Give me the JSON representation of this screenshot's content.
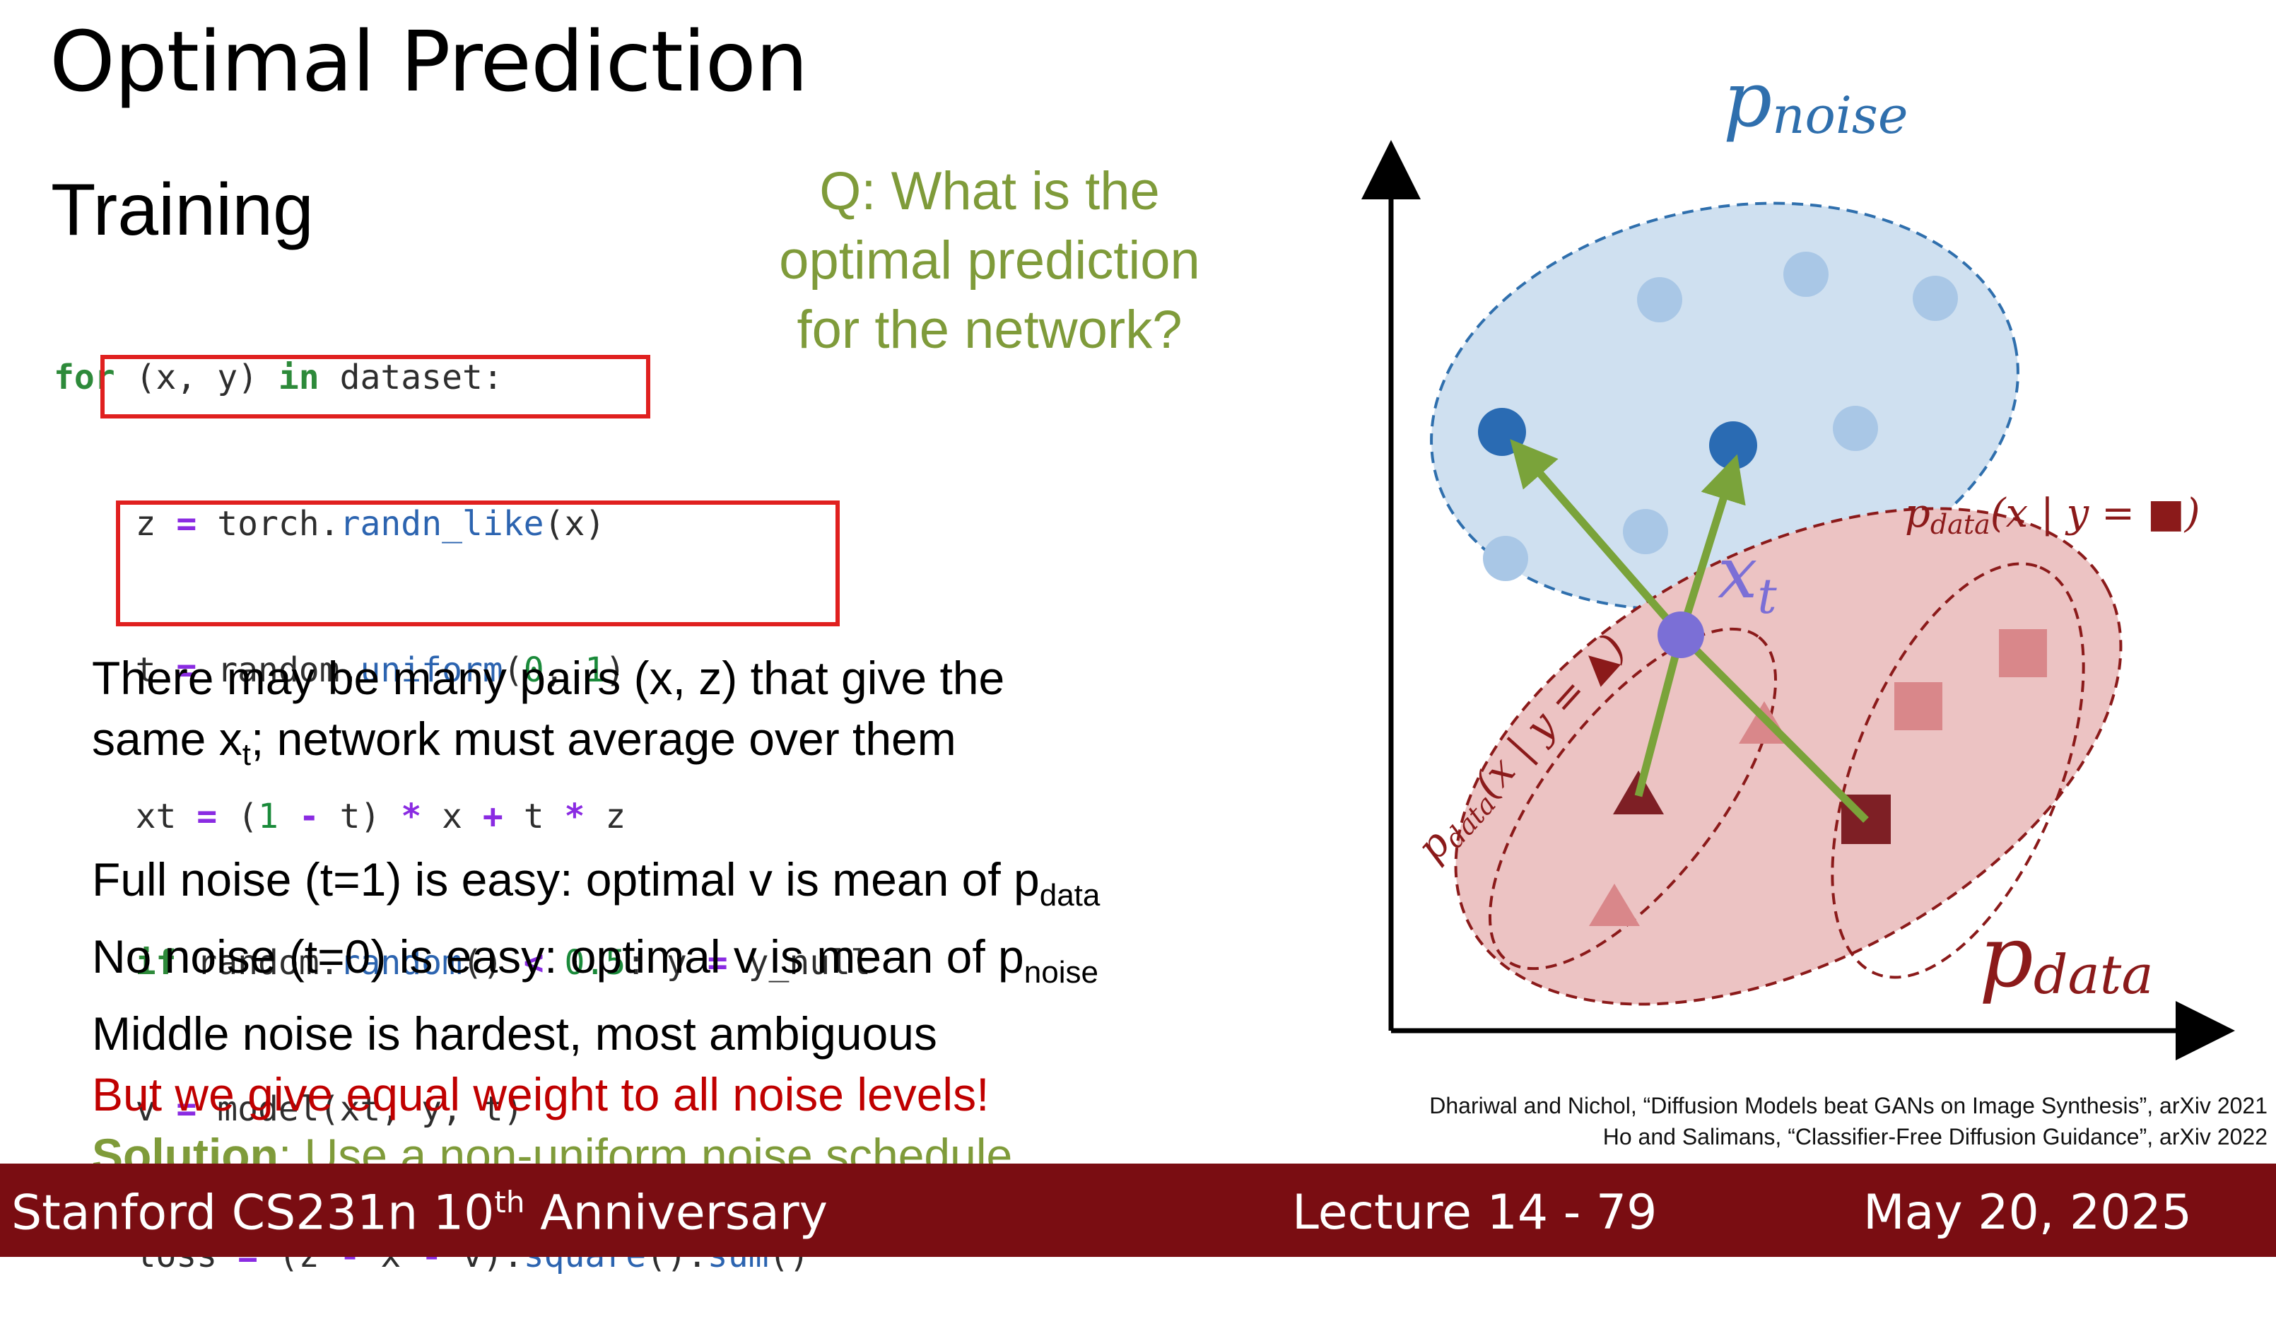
{
  "slide": {
    "title": "Optimal Prediction",
    "subtitle": "Training"
  },
  "question": {
    "line1": "Q: What is the",
    "line2": "optimal prediction",
    "line3": "for the network?"
  },
  "code": {
    "l1_kw": "for",
    "l1_a": " (x, y) ",
    "l1_kw2": "in",
    "l1_b": " dataset:",
    "l2_a": "    z ",
    "l2_op": "=",
    "l2_b": " torch.",
    "l2_fn": "randn_like",
    "l2_c": "(x)",
    "l3_a": "    t ",
    "l3_op": "=",
    "l3_b": " random.",
    "l3_fn": "uniform",
    "l3_c": "(",
    "l3_n1": "0",
    "l3_d": ", ",
    "l3_n2": "1",
    "l3_e": ")",
    "l4_a": "    xt ",
    "l4_op": "=",
    "l4_b": " (",
    "l4_n1": "1",
    "l4_c": " ",
    "l4_op2": "-",
    "l4_d": " t) ",
    "l4_op3": "*",
    "l4_e": " x ",
    "l4_op4": "+",
    "l4_f": " t ",
    "l4_op5": "*",
    "l4_g": " z",
    "l5_pre": "    ",
    "l5_kw": "if",
    "l5_a": " random.",
    "l5_fn": "random",
    "l5_b": "() ",
    "l5_op": "<",
    "l5_c": " ",
    "l5_n": "0.5",
    "l5_d": ": y ",
    "l5_op2": "=",
    "l5_e": " y_null",
    "l6_a": "    v ",
    "l6_op": "=",
    "l6_b": " model(xt, y, t)",
    "l7_a": "    loss ",
    "l7_op": "=",
    "l7_b": " (z ",
    "l7_op2": "-",
    "l7_c": " x ",
    "l7_op3": "-",
    "l7_d": " v).",
    "l7_fn": "square",
    "l7_e": "().",
    "l7_fn2": "sum",
    "l7_f": "()"
  },
  "bullets": {
    "b1_line1": "There may be many pairs (x, z) that give the",
    "b1_line2_a": "same x",
    "b1_line2_sub": "t",
    "b1_line2_b": "; network must average over them",
    "b2_a": "Full noise (t=1) is easy: optimal v is mean of p",
    "b2_sub": "data",
    "b3_a": "No noise (t=0) is easy: optimal v is mean of p",
    "b3_sub": "noise",
    "b4": "Middle noise is hardest, most ambiguous",
    "b5": "But we give equal weight to all noise levels!",
    "b6_bold": "Solution",
    "b6_a": ": Use a non-uniform ",
    "b6_u": "noise schedule"
  },
  "diagram": {
    "p_noise_label": "p",
    "p_noise_sub": "noise",
    "p_data_label": "p",
    "p_data_sub": "data",
    "cond_square_label": "p",
    "cond_square_sub": "data",
    "cond_square_expr": "(x | y = ■)",
    "cond_tri_label": "p",
    "cond_tri_sub": "data",
    "cond_tri_expr": "(x | y = ▲)",
    "xt_label": "x",
    "xt_sub": "t",
    "colors": {
      "noise_fill": "#cfe0f0",
      "noise_stroke": "#2f6fad",
      "noise_dot_light": "#a9c7e6",
      "noise_dot_dark": "#2a6bb3",
      "data_fill": "#ecc3c3",
      "data_stroke": "#8b1a1a",
      "data_mark_light": "#d9878a",
      "data_mark_dark": "#7e1f25",
      "arrow": "#7aa33a",
      "xt_point": "#7b6fd6"
    }
  },
  "citations": {
    "c1": "Dhariwal and Nichol, “Diffusion Models beat GANs on Image Synthesis”, arXiv 2021",
    "c2": "Ho and Salimans, “Classifier-Free Diffusion Guidance”, arXiv 2022"
  },
  "footer": {
    "course_a": "Stanford CS231n 10",
    "course_sup": "th",
    "course_b": " Anniversary",
    "lecture": "Lecture 14 -  79",
    "date": "May 20, 2025"
  }
}
